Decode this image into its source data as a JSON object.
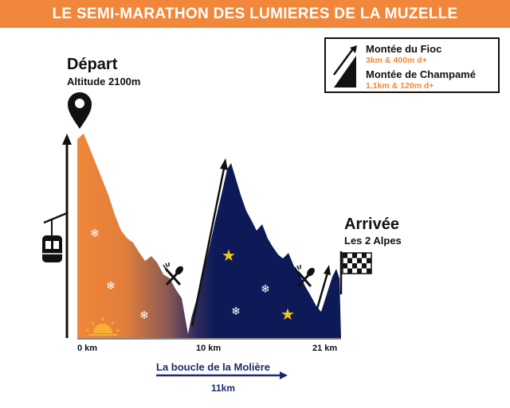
{
  "title": "LE SEMI-MARATHON DES LUMIERES DE LA MUZELLE",
  "legend": {
    "climb1_name": "Montée du Fioc",
    "climb1_stats": "3km & 400m d+",
    "climb2_name": "Montée de Champamé",
    "climb2_stats": "1,1km & 120m d+"
  },
  "start": {
    "title": "Départ",
    "altitude": "Altitude 2100m"
  },
  "finish": {
    "title": "Arrivée",
    "place": "Les 2 Alpes"
  },
  "distance_marks": [
    "0 km",
    "10 km",
    "21 km"
  ],
  "loop": {
    "name": "La boucle de la Molière",
    "distance": "11km"
  },
  "colors": {
    "orange": "#f0873a",
    "navy": "#0d1a57",
    "loop_blue": "#1b2a6e",
    "black": "#111111"
  },
  "icons": [
    "map-pin-icon",
    "gondola-icon",
    "sunrise-icon",
    "snowflake-icon",
    "star-icon",
    "fork-spoon-icon",
    "checkered-flag-icon",
    "climb-legend-icon"
  ]
}
